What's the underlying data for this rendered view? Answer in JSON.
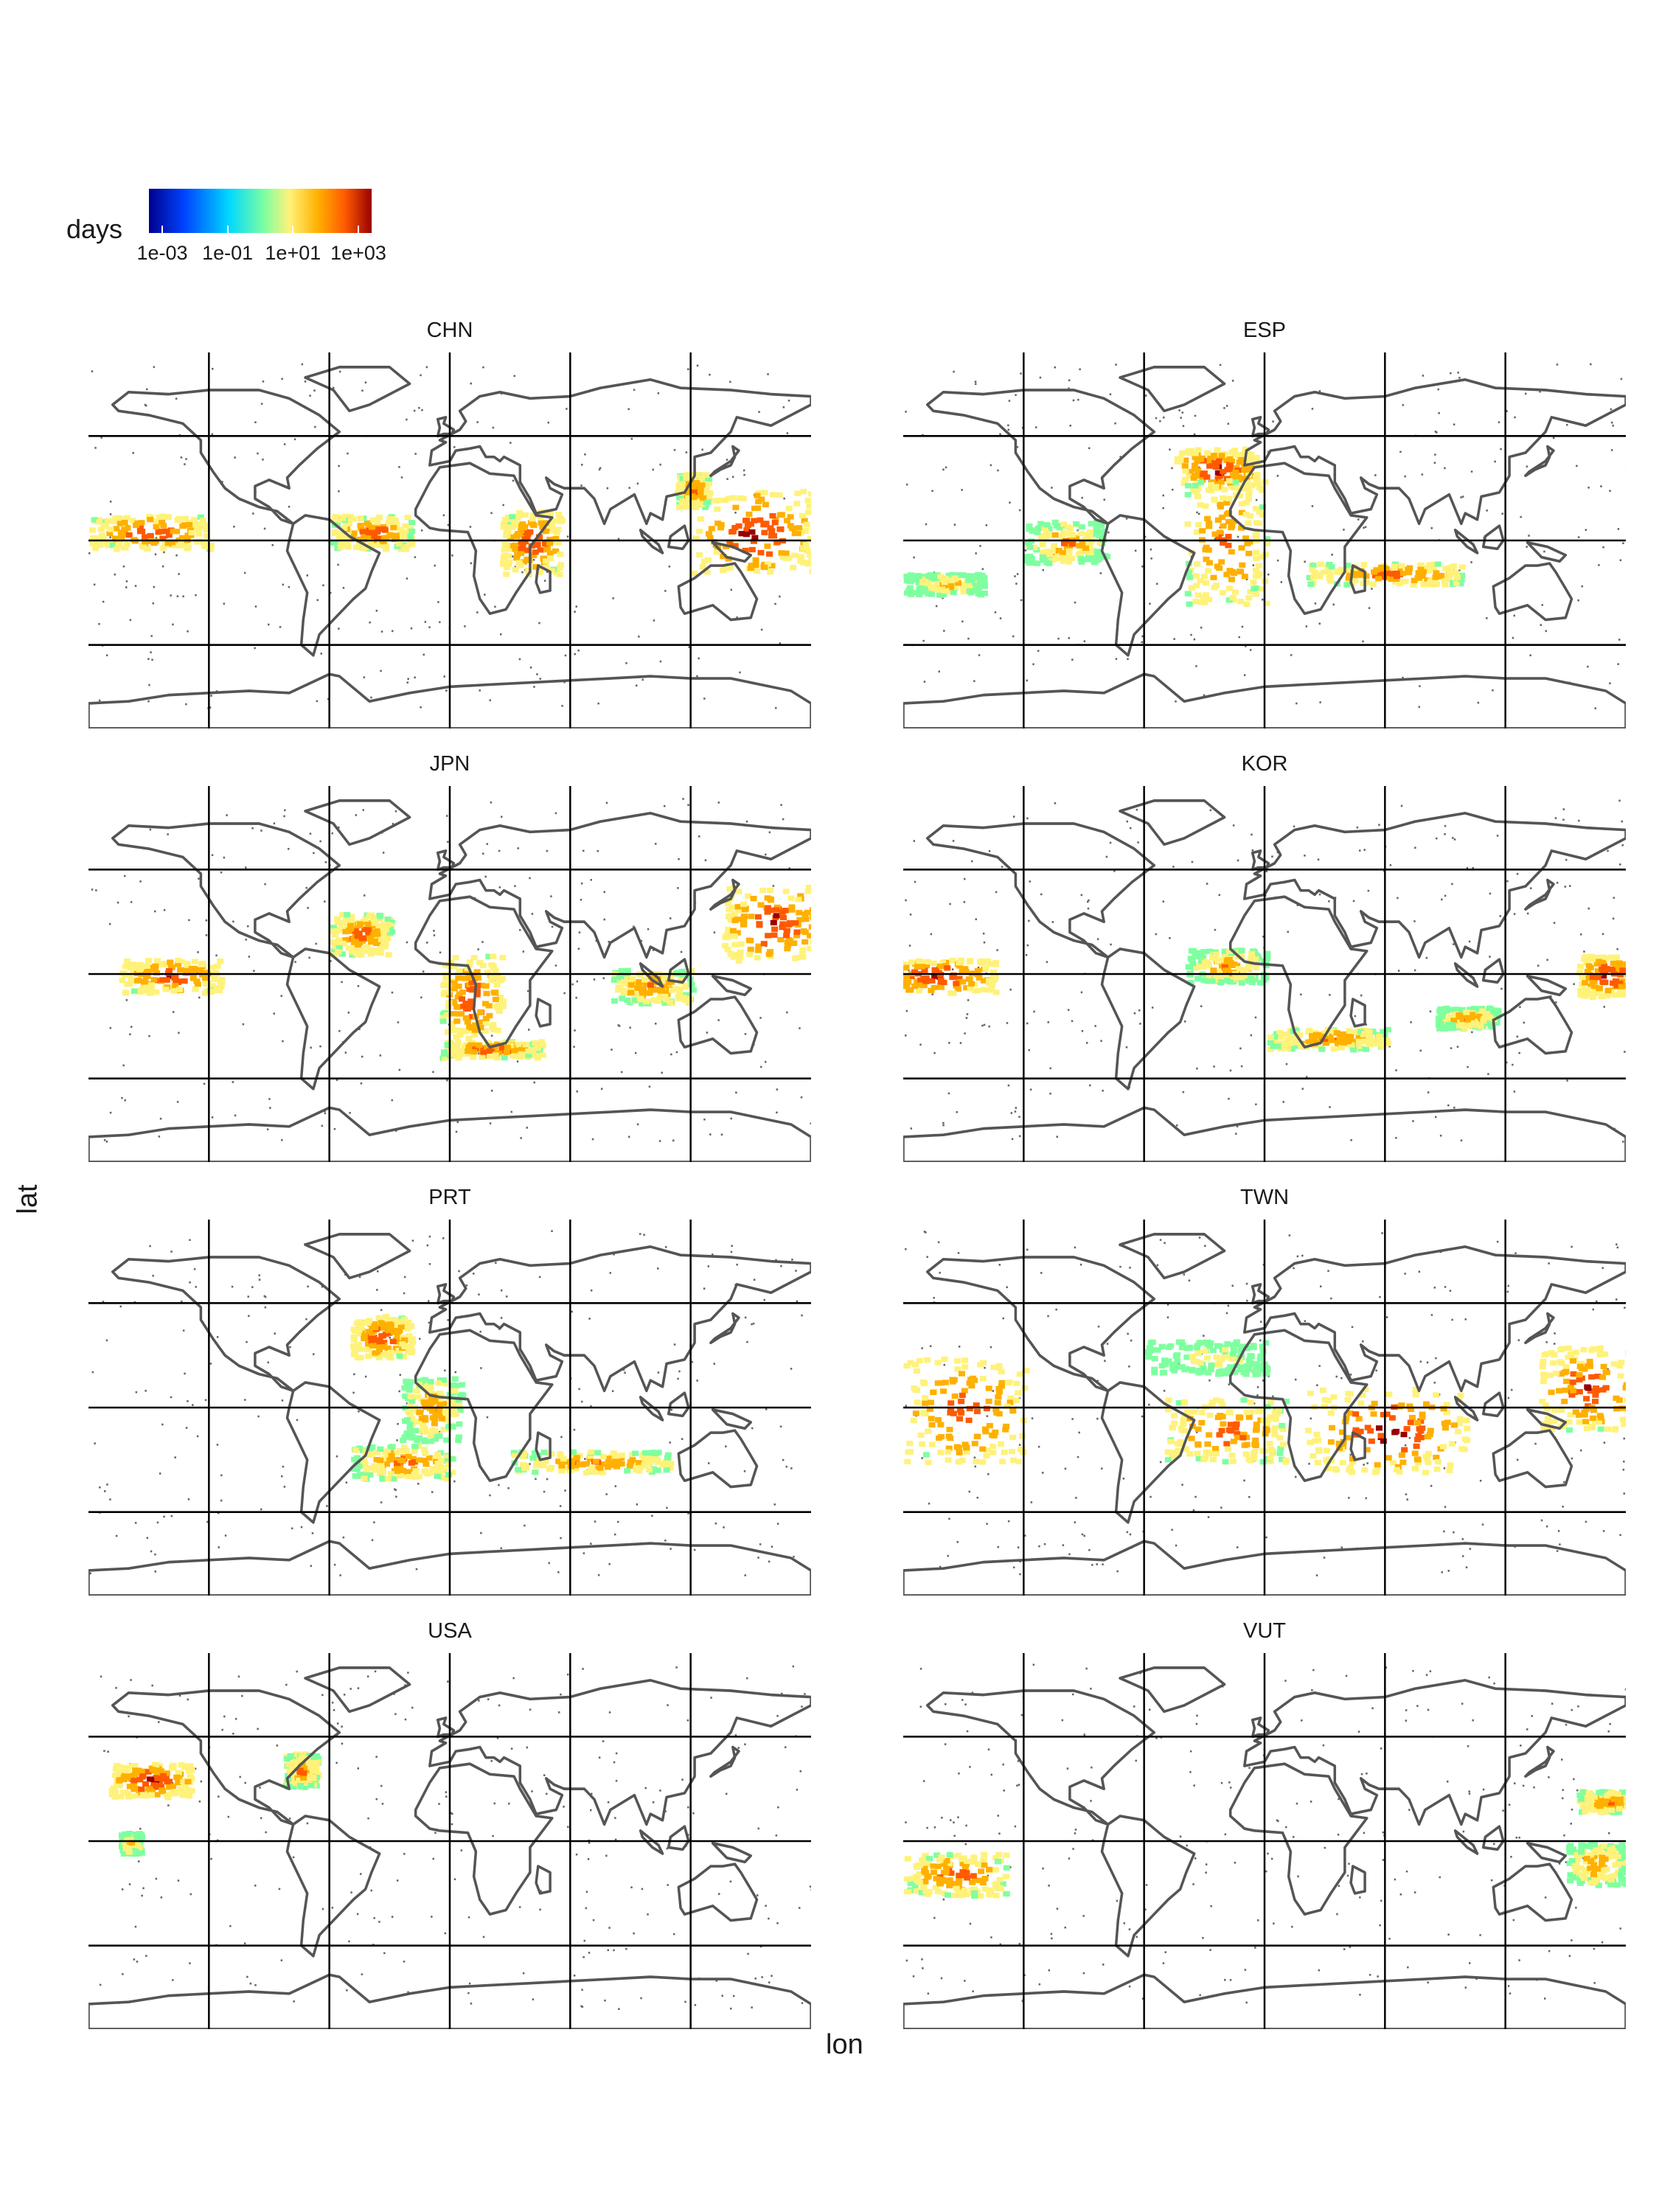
{
  "legend": {
    "title": "days",
    "ticks": [
      "1e-03",
      "1e-01",
      "1e+01",
      "1e+03"
    ]
  },
  "colorscale": [
    "#00008f",
    "#0044ff",
    "#00d8ff",
    "#7fffa0",
    "#fff27a",
    "#ffb000",
    "#ff5a00",
    "#990000"
  ],
  "axes": {
    "x_label": "lon",
    "y_label": "lat"
  },
  "chart_data": {
    "type": "heatmap",
    "xlabel": "lon",
    "ylabel": "lat",
    "legend_title": "days",
    "colorbar_ticks": [
      "1e-03",
      "1e-01",
      "1e+01",
      "1e+03"
    ],
    "scale": "log",
    "facets": [
      {
        "name": "CHN",
        "hotspots": [
          [
            -150,
            5,
            30,
            8,
            0.9
          ],
          [
            -40,
            5,
            20,
            8,
            0.85
          ],
          [
            40,
            0,
            15,
            15,
            0.9
          ],
          [
            150,
            5,
            30,
            20,
            0.95
          ],
          [
            120,
            25,
            8,
            8,
            0.85
          ]
        ]
      },
      {
        "name": "ESP",
        "hotspots": [
          [
            -25,
            35,
            20,
            10,
            0.95
          ],
          [
            -20,
            0,
            20,
            30,
            0.85
          ],
          [
            -100,
            0,
            20,
            10,
            0.75
          ],
          [
            60,
            -15,
            40,
            5,
            0.85
          ],
          [
            -160,
            -20,
            20,
            5,
            0.7
          ]
        ]
      },
      {
        "name": "JPN",
        "hotspots": [
          [
            160,
            25,
            25,
            18,
            0.95
          ],
          [
            -140,
            0,
            25,
            8,
            0.9
          ],
          [
            -45,
            20,
            15,
            10,
            0.85
          ],
          [
            10,
            -10,
            15,
            20,
            0.9
          ],
          [
            100,
            -5,
            20,
            8,
            0.8
          ],
          [
            20,
            -35,
            25,
            4,
            0.85
          ]
        ]
      },
      {
        "name": "KOR",
        "hotspots": [
          [
            -165,
            0,
            30,
            8,
            0.95
          ],
          [
            170,
            0,
            15,
            10,
            0.95
          ],
          [
            -20,
            5,
            20,
            8,
            0.75
          ],
          [
            30,
            -30,
            30,
            5,
            0.8
          ],
          [
            100,
            -20,
            15,
            5,
            0.75
          ]
        ]
      },
      {
        "name": "PRT",
        "hotspots": [
          [
            -35,
            35,
            15,
            10,
            0.9
          ],
          [
            -10,
            0,
            15,
            15,
            0.75
          ],
          [
            -25,
            -25,
            25,
            8,
            0.8
          ],
          [
            70,
            -25,
            40,
            5,
            0.8
          ]
        ]
      },
      {
        "name": "TWN",
        "hotspots": [
          [
            -150,
            0,
            30,
            25,
            0.9
          ],
          [
            160,
            10,
            25,
            20,
            0.9
          ],
          [
            60,
            -10,
            40,
            20,
            0.95
          ],
          [
            -20,
            -10,
            30,
            15,
            0.85
          ],
          [
            -30,
            25,
            30,
            8,
            0.6
          ]
        ]
      },
      {
        "name": "USA",
        "hotspots": [
          [
            -150,
            30,
            20,
            8,
            0.95
          ],
          [
            -75,
            35,
            8,
            8,
            0.8
          ],
          [
            -160,
            0,
            5,
            5,
            0.7
          ]
        ]
      },
      {
        "name": "VUT",
        "hotspots": [
          [
            -155,
            -15,
            25,
            10,
            0.85
          ],
          [
            170,
            20,
            15,
            5,
            0.8
          ],
          [
            165,
            -10,
            15,
            10,
            0.75
          ]
        ]
      }
    ],
    "x_gridlines": [
      -120,
      -60,
      0,
      60,
      120
    ],
    "y_gridlines": [
      -50,
      0,
      50
    ],
    "xlim": [
      -180,
      180
    ],
    "ylim": [
      -90,
      90
    ]
  }
}
